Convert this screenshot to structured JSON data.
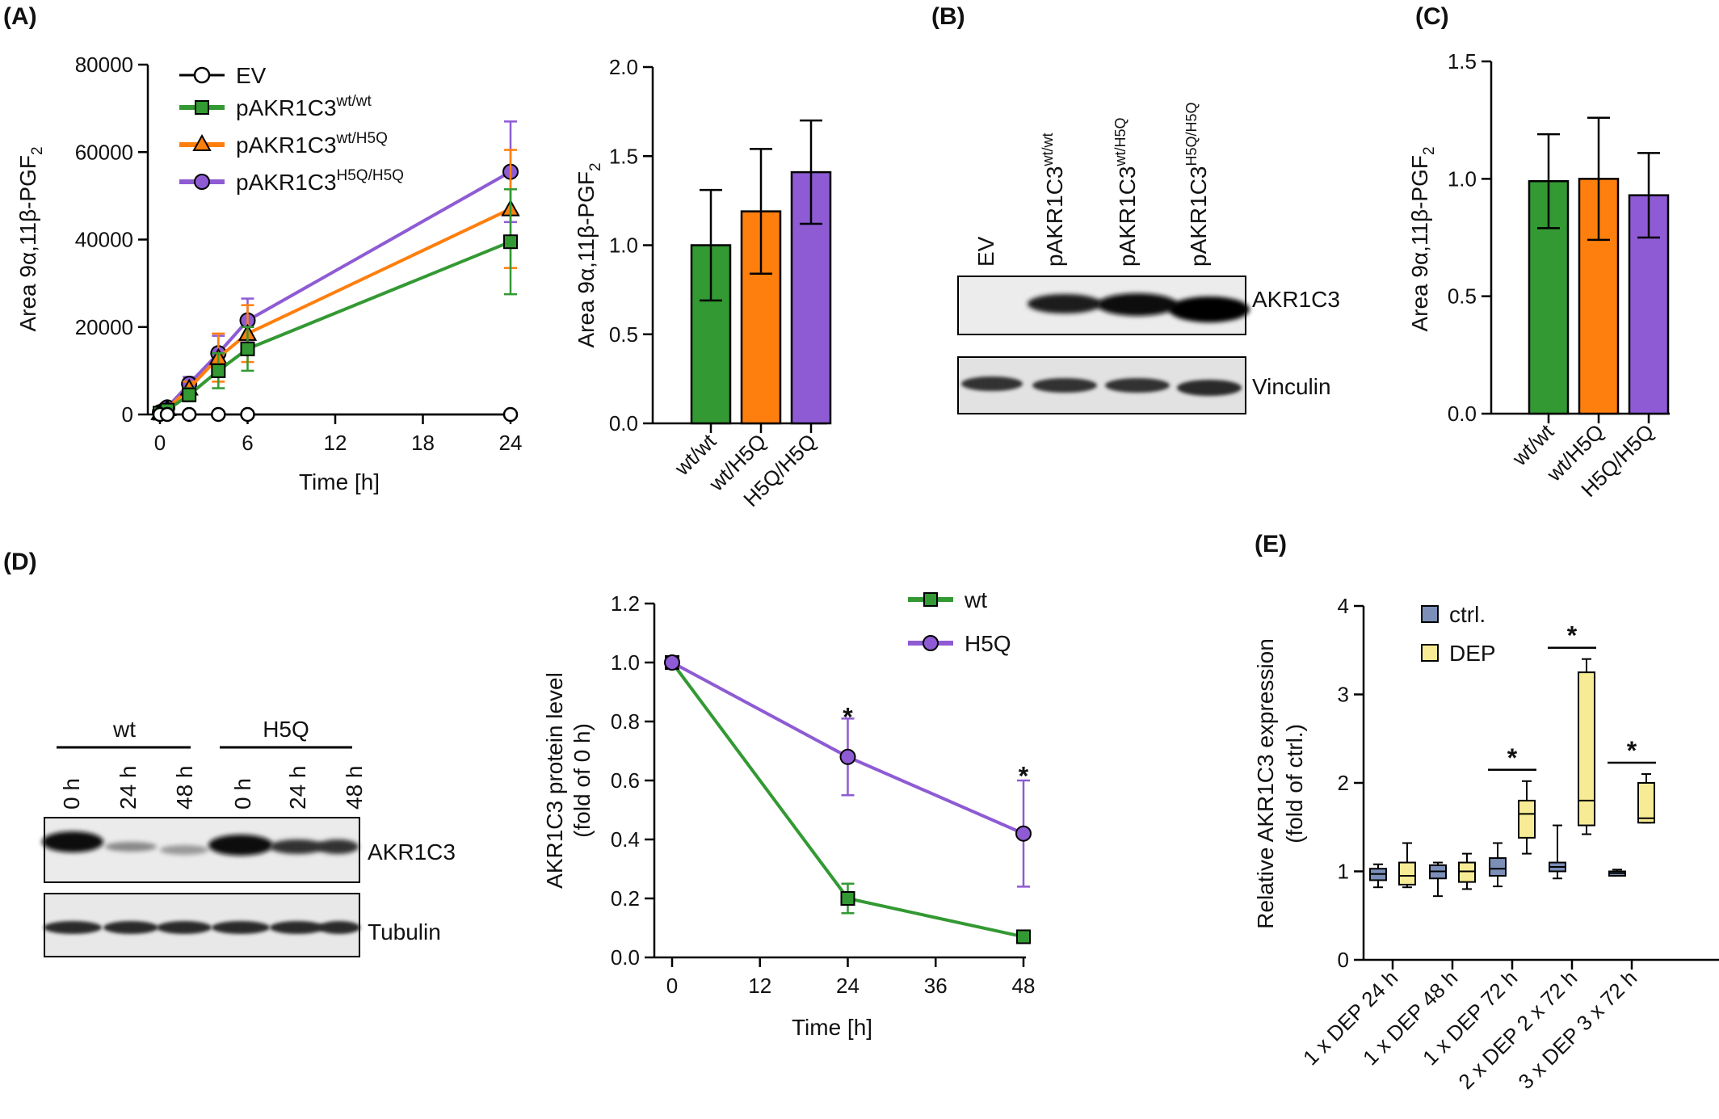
{
  "panels": {
    "A": "(A)",
    "B": "(B)",
    "C": "(C)",
    "D": "(D)",
    "E": "(E)"
  },
  "colors": {
    "EV": "#000000",
    "wt_wt": "#339933",
    "wt_h5q": "#ff7f0e",
    "h5q_h5q": "#8e5bd4",
    "ctrl": "#7b8fb8",
    "dep": "#f7ec95"
  },
  "chart_data": [
    {
      "id": "A_line",
      "type": "line",
      "xlabel": "Time [h]",
      "ylabel_main": "Area 9α,11β-PGF",
      "ylabel_sub": "2",
      "xticks": [
        0,
        6,
        12,
        18,
        24
      ],
      "yticks": [
        0,
        20000,
        40000,
        60000,
        80000
      ],
      "yticklabels": [
        "0",
        "20000",
        "40000",
        "60000",
        "80000"
      ],
      "xlim": [
        0,
        24
      ],
      "ylim": [
        0,
        80000
      ],
      "series": [
        {
          "key": "EV",
          "name": "EV",
          "sup": "",
          "marker": "circle-open",
          "color": "#000000",
          "x": [
            0,
            0.5,
            2,
            4,
            6,
            24
          ],
          "y": [
            0,
            0,
            0,
            0,
            0,
            0
          ],
          "err": [
            0,
            0,
            0,
            0,
            0,
            0
          ]
        },
        {
          "key": "wt_wt",
          "name": "pAKR1C3",
          "sup": "wt/wt",
          "marker": "square",
          "color": "#339933",
          "x": [
            0,
            0.5,
            2,
            4,
            6,
            24
          ],
          "y": [
            300,
            1000,
            4500,
            10000,
            15000,
            39500
          ],
          "err": [
            300,
            800,
            1500,
            4000,
            5000,
            12000
          ]
        },
        {
          "key": "wt_h5q",
          "name": "pAKR1C3",
          "sup": "wt/H5Q",
          "marker": "triangle",
          "color": "#ff7f0e",
          "x": [
            0,
            0.5,
            2,
            4,
            6,
            24
          ],
          "y": [
            400,
            1300,
            6000,
            13000,
            18500,
            47000
          ],
          "err": [
            300,
            800,
            1500,
            5500,
            6500,
            13500
          ]
        },
        {
          "key": "h5q_h5q",
          "name": "pAKR1C3",
          "sup": "H5Q/H5Q",
          "marker": "circle",
          "color": "#8e5bd4",
          "x": [
            0,
            0.5,
            2,
            4,
            6,
            24
          ],
          "y": [
            500,
            1600,
            7000,
            14000,
            21500,
            55500
          ],
          "err": [
            300,
            800,
            1600,
            4000,
            5000,
            11500
          ]
        }
      ]
    },
    {
      "id": "A_bar",
      "type": "bar",
      "ylabel_main": "Area 9α,11β-PGF",
      "ylabel_sub": "2",
      "categories": [
        "wt/wt",
        "wt/H5Q",
        "H5Q/H5Q"
      ],
      "values": [
        1.0,
        1.19,
        1.41
      ],
      "errors": [
        0.31,
        0.35,
        0.29
      ],
      "colors": [
        "#339933",
        "#ff7f0e",
        "#8e5bd4"
      ],
      "yticks": [
        0,
        0.5,
        1,
        1.5,
        2
      ],
      "yticklabels": [
        "0.0",
        "0.5",
        "1.0",
        "1.5",
        "2.0"
      ],
      "ylim": [
        0,
        2.0
      ]
    },
    {
      "id": "C_bar",
      "type": "bar",
      "ylabel_main": "Area 9α,11β-PGF",
      "ylabel_sub": "2",
      "categories": [
        "wt/wt",
        "wt/H5Q",
        "H5Q/H5Q"
      ],
      "values": [
        0.99,
        1.0,
        0.93
      ],
      "errors": [
        0.2,
        0.26,
        0.18
      ],
      "colors": [
        "#339933",
        "#ff7f0e",
        "#8e5bd4"
      ],
      "yticks": [
        0,
        0.5,
        1,
        1.5
      ],
      "yticklabels": [
        "0.0",
        "0.5",
        "1.0",
        "1.5"
      ],
      "ylim": [
        0,
        1.5
      ]
    },
    {
      "id": "D_line",
      "type": "line",
      "xlabel": "Time [h]",
      "ylabel_line1": "AKR1C3 protein level",
      "ylabel_line2": "(fold of 0 h)",
      "xticks": [
        0,
        12,
        24,
        36,
        48
      ],
      "yticks": [
        0,
        0.2,
        0.4,
        0.6,
        0.8,
        1.0,
        1.2
      ],
      "yticklabels": [
        "0.0",
        "0.2",
        "0.4",
        "0.6",
        "0.8",
        "1.0",
        "1.2"
      ],
      "xlim": [
        0,
        48
      ],
      "ylim": [
        0,
        1.2
      ],
      "series": [
        {
          "name": "wt",
          "marker": "square",
          "color": "#339933",
          "x": [
            0,
            24,
            48
          ],
          "y": [
            1.0,
            0.2,
            0.07
          ],
          "err": [
            0,
            0.05,
            0.01
          ]
        },
        {
          "name": "H5Q",
          "marker": "circle",
          "color": "#8e5bd4",
          "x": [
            0,
            24,
            48
          ],
          "y": [
            1.0,
            0.68,
            0.42
          ],
          "err": [
            0,
            0.13,
            0.18
          ]
        }
      ],
      "annotations": [
        {
          "x": 24,
          "y": 0.84,
          "text": "*"
        },
        {
          "x": 48,
          "y": 0.64,
          "text": "*"
        }
      ]
    },
    {
      "id": "E_box",
      "type": "box",
      "ylabel_line1": "Relative AKR1C3 expression",
      "ylabel_line2": "(fold of ctrl.)",
      "categories": [
        "1 x DEP 24 h",
        "1 x DEP 48 h",
        "1 x DEP 72 h",
        "2 x DEP 2 x 72 h",
        "3 x DEP 3 x 72 h"
      ],
      "yticks": [
        0,
        1,
        2,
        3,
        4
      ],
      "yticklabels": [
        "0",
        "1",
        "2",
        "3",
        "4"
      ],
      "ylim": [
        0,
        4
      ],
      "legend": [
        {
          "name": "ctrl.",
          "color": "#7b8fb8"
        },
        {
          "name": "DEP",
          "color": "#f7ec95"
        }
      ],
      "boxes": [
        {
          "group": 0,
          "series": "ctrl.",
          "min": 0.82,
          "q1": 0.9,
          "median": 0.97,
          "q3": 1.03,
          "max": 1.08
        },
        {
          "group": 0,
          "series": "DEP",
          "min": 0.82,
          "q1": 0.85,
          "median": 0.95,
          "q3": 1.1,
          "max": 1.32
        },
        {
          "group": 1,
          "series": "ctrl.",
          "min": 0.72,
          "q1": 0.92,
          "median": 1.0,
          "q3": 1.07,
          "max": 1.1
        },
        {
          "group": 1,
          "series": "DEP",
          "min": 0.8,
          "q1": 0.88,
          "median": 1.0,
          "q3": 1.1,
          "max": 1.2
        },
        {
          "group": 2,
          "series": "ctrl.",
          "min": 0.83,
          "q1": 0.95,
          "median": 1.03,
          "q3": 1.15,
          "max": 1.32
        },
        {
          "group": 2,
          "series": "DEP",
          "min": 1.2,
          "q1": 1.38,
          "median": 1.65,
          "q3": 1.8,
          "max": 2.02
        },
        {
          "group": 3,
          "series": "ctrl.",
          "min": 0.92,
          "q1": 1.0,
          "median": 1.05,
          "q3": 1.1,
          "max": 1.52
        },
        {
          "group": 3,
          "series": "DEP",
          "min": 1.42,
          "q1": 1.52,
          "median": 1.8,
          "q3": 3.25,
          "max": 3.4
        },
        {
          "group": 4,
          "series": "ctrl.",
          "min": 0.95,
          "q1": 0.95,
          "median": 0.98,
          "q3": 1.0,
          "max": 1.02
        },
        {
          "group": 4,
          "series": "DEP",
          "min": 1.55,
          "q1": 1.55,
          "median": 1.6,
          "q3": 2.0,
          "max": 2.1
        }
      ],
      "sig_groups": [
        2,
        3,
        4
      ],
      "sig_text": "*"
    }
  ],
  "blot_B": {
    "lanes": [
      "EV",
      "pAKR1C3",
      "pAKR1C3",
      "pAKR1C3"
    ],
    "lane_sups": [
      "",
      "wt/wt",
      "wt/H5Q",
      "H5Q/H5Q"
    ],
    "top_label": "AKR1C3",
    "bottom_label": "Vinculin"
  },
  "blot_D": {
    "groups": [
      "wt",
      "H5Q"
    ],
    "lanes": [
      "0 h",
      "24 h",
      "48 h",
      "0 h",
      "24 h",
      "48 h"
    ],
    "top_label": "AKR1C3",
    "bottom_label": "Tubulin"
  }
}
